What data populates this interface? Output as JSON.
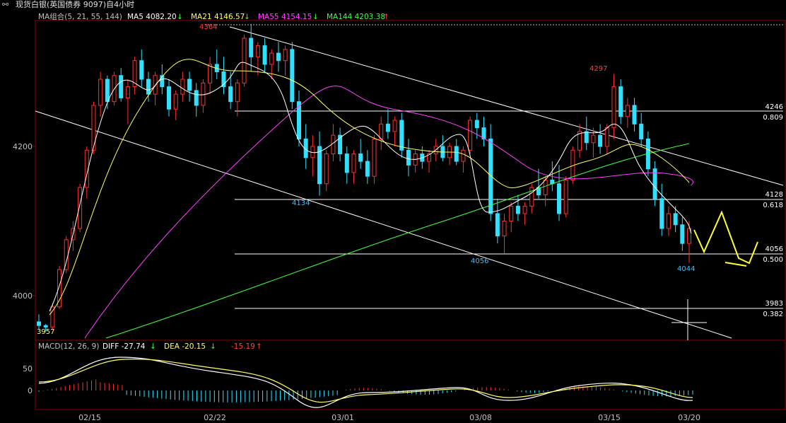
{
  "window": {
    "link_icon": "link-icon",
    "title": "现货白银(英国债券 9097)自4小时"
  },
  "main_legend": {
    "label": "MA组合(5, 21, 55, 144)",
    "ma5": {
      "text": "MA5 4082.20",
      "arrow": "↓",
      "color": "#ffffff"
    },
    "ma21": {
      "text": "MA21 4146.57",
      "arrow": "↓",
      "color": "#ffff66"
    },
    "ma55": {
      "text": "MA55 4154.15",
      "arrow": "↓",
      "color": "#ff40ff"
    },
    "ma144": {
      "text": "MA144 4203.38",
      "arrow": "↑",
      "color": "#40ff40"
    }
  },
  "price_axis": {
    "ticks": [
      "4200",
      "4000"
    ]
  },
  "fib_levels": [
    {
      "price": "4246",
      "ratio": "0.809"
    },
    {
      "price": "4128",
      "ratio": "0.618"
    },
    {
      "price": "4056",
      "ratio": "0.500"
    },
    {
      "price": "3983",
      "ratio": "0.382"
    }
  ],
  "annotations": {
    "high1": "4364",
    "high2": "4297",
    "low1": "4134",
    "low2": "4056",
    "low3": "4044",
    "start": "3957"
  },
  "macd_legend": {
    "label": "MACD(12, 26, 9)",
    "diff": {
      "text": "DIFF -27.74",
      "arrow": "↓",
      "color": "#ffffff"
    },
    "dea": {
      "text": "DEA -20.15",
      "arrow": "↓",
      "color": "#ffff66"
    },
    "macd": {
      "text": "-15.19",
      "arrow": "↑",
      "color": "#ff4040"
    }
  },
  "macd_axis": {
    "ticks": [
      "50",
      "0"
    ]
  },
  "date_axis": {
    "labels": [
      "02/15",
      "02/22",
      "03/01",
      "03/08",
      "03/15",
      "03/20"
    ]
  },
  "chart_data": {
    "type": "candlestick",
    "title": "现货白银(英国债券 9097)自4小时",
    "x_labels": [
      "02/15",
      "02/22",
      "03/01",
      "03/08",
      "03/15",
      "03/20"
    ],
    "price_ticks": [
      4200,
      4000
    ],
    "ylim": [
      3940,
      4390
    ],
    "candles": [
      [
        3965,
        3975,
        3955,
        3960
      ],
      [
        3960,
        3962,
        3952,
        3958
      ],
      [
        3958,
        3990,
        3955,
        3985
      ],
      [
        3985,
        4040,
        3982,
        4035
      ],
      [
        4035,
        4080,
        4030,
        4075
      ],
      [
        4075,
        4100,
        4060,
        4090
      ],
      [
        4090,
        4150,
        4085,
        4145
      ],
      [
        4145,
        4200,
        4130,
        4195
      ],
      [
        4195,
        4260,
        4190,
        4255
      ],
      [
        4255,
        4300,
        4240,
        4290
      ],
      [
        4290,
        4295,
        4250,
        4260
      ],
      [
        4260,
        4300,
        4255,
        4295
      ],
      [
        4295,
        4305,
        4260,
        4265
      ],
      [
        4265,
        4290,
        4230,
        4280
      ],
      [
        4280,
        4320,
        4270,
        4315
      ],
      [
        4315,
        4330,
        4280,
        4290
      ],
      [
        4290,
        4300,
        4260,
        4270
      ],
      [
        4270,
        4300,
        4255,
        4295
      ],
      [
        4295,
        4310,
        4270,
        4280
      ],
      [
        4280,
        4290,
        4240,
        4250
      ],
      [
        4250,
        4275,
        4235,
        4270
      ],
      [
        4270,
        4300,
        4260,
        4290
      ],
      [
        4290,
        4300,
        4260,
        4275
      ],
      [
        4275,
        4285,
        4240,
        4255
      ],
      [
        4255,
        4290,
        4245,
        4285
      ],
      [
        4285,
        4320,
        4270,
        4310
      ],
      [
        4310,
        4330,
        4290,
        4300
      ],
      [
        4300,
        4320,
        4270,
        4280
      ],
      [
        4280,
        4300,
        4250,
        4260
      ],
      [
        4260,
        4290,
        4240,
        4285
      ],
      [
        4285,
        4350,
        4280,
        4345
      ],
      [
        4345,
        4364,
        4300,
        4320
      ],
      [
        4320,
        4340,
        4295,
        4335
      ],
      [
        4335,
        4345,
        4300,
        4310
      ],
      [
        4310,
        4330,
        4290,
        4325
      ],
      [
        4325,
        4340,
        4300,
        4315
      ],
      [
        4315,
        4335,
        4295,
        4330
      ],
      [
        4330,
        4340,
        4250,
        4260
      ],
      [
        4260,
        4275,
        4200,
        4210
      ],
      [
        4210,
        4230,
        4170,
        4185
      ],
      [
        4185,
        4215,
        4160,
        4200
      ],
      [
        4200,
        4220,
        4134,
        4150
      ],
      [
        4150,
        4195,
        4140,
        4190
      ],
      [
        4190,
        4230,
        4180,
        4215
      ],
      [
        4215,
        4225,
        4180,
        4190
      ],
      [
        4190,
        4200,
        4150,
        4165
      ],
      [
        4165,
        4195,
        4150,
        4190
      ],
      [
        4190,
        4210,
        4170,
        4180
      ],
      [
        4180,
        4195,
        4150,
        4160
      ],
      [
        4160,
        4215,
        4150,
        4210
      ],
      [
        4210,
        4240,
        4195,
        4230
      ],
      [
        4230,
        4250,
        4210,
        4220
      ],
      [
        4220,
        4240,
        4200,
        4235
      ],
      [
        4235,
        4245,
        4185,
        4195
      ],
      [
        4195,
        4210,
        4160,
        4175
      ],
      [
        4175,
        4195,
        4165,
        4190
      ],
      [
        4190,
        4200,
        4170,
        4180
      ],
      [
        4180,
        4195,
        4165,
        4190
      ],
      [
        4190,
        4210,
        4180,
        4200
      ],
      [
        4200,
        4215,
        4180,
        4185
      ],
      [
        4185,
        4205,
        4175,
        4200
      ],
      [
        4200,
        4210,
        4175,
        4180
      ],
      [
        4180,
        4200,
        4165,
        4195
      ],
      [
        4195,
        4240,
        4190,
        4235
      ],
      [
        4235,
        4245,
        4210,
        4225
      ],
      [
        4225,
        4240,
        4200,
        4210
      ],
      [
        4210,
        4230,
        4100,
        4110
      ],
      [
        4110,
        4130,
        4070,
        4080
      ],
      [
        4080,
        4110,
        4056,
        4100
      ],
      [
        4100,
        4125,
        4085,
        4120
      ],
      [
        4120,
        4135,
        4100,
        4110
      ],
      [
        4110,
        4125,
        4095,
        4120
      ],
      [
        4120,
        4150,
        4110,
        4145
      ],
      [
        4145,
        4170,
        4130,
        4135
      ],
      [
        4135,
        4160,
        4120,
        4155
      ],
      [
        4155,
        4180,
        4140,
        4150
      ],
      [
        4150,
        4175,
        4100,
        4110
      ],
      [
        4110,
        4160,
        4105,
        4155
      ],
      [
        4155,
        4200,
        4150,
        4195
      ],
      [
        4195,
        4230,
        4185,
        4220
      ],
      [
        4220,
        4240,
        4195,
        4205
      ],
      [
        4205,
        4225,
        4185,
        4215
      ],
      [
        4215,
        4230,
        4190,
        4200
      ],
      [
        4200,
        4230,
        4190,
        4225
      ],
      [
        4225,
        4297,
        4210,
        4280
      ],
      [
        4280,
        4290,
        4230,
        4240
      ],
      [
        4240,
        4265,
        4225,
        4255
      ],
      [
        4255,
        4265,
        4220,
        4230
      ],
      [
        4230,
        4245,
        4200,
        4210
      ],
      [
        4210,
        4220,
        4160,
        4170
      ],
      [
        4170,
        4180,
        4120,
        4130
      ],
      [
        4130,
        4150,
        4080,
        4090
      ],
      [
        4090,
        4120,
        4080,
        4110
      ],
      [
        4110,
        4120,
        4085,
        4095
      ],
      [
        4095,
        4105,
        4060,
        4070
      ],
      [
        4070,
        4100,
        4044,
        4090
      ]
    ],
    "macd": {
      "diff_last": -27.74,
      "dea_last": -20.15,
      "hist_last": -15.19,
      "yticks": [
        50,
        0
      ]
    },
    "fibonacci": [
      {
        "price": 4246,
        "ratio": 0.809
      },
      {
        "price": 4128,
        "ratio": 0.618
      },
      {
        "price": 4056,
        "ratio": 0.5
      },
      {
        "price": 3983,
        "ratio": 0.382
      }
    ]
  }
}
